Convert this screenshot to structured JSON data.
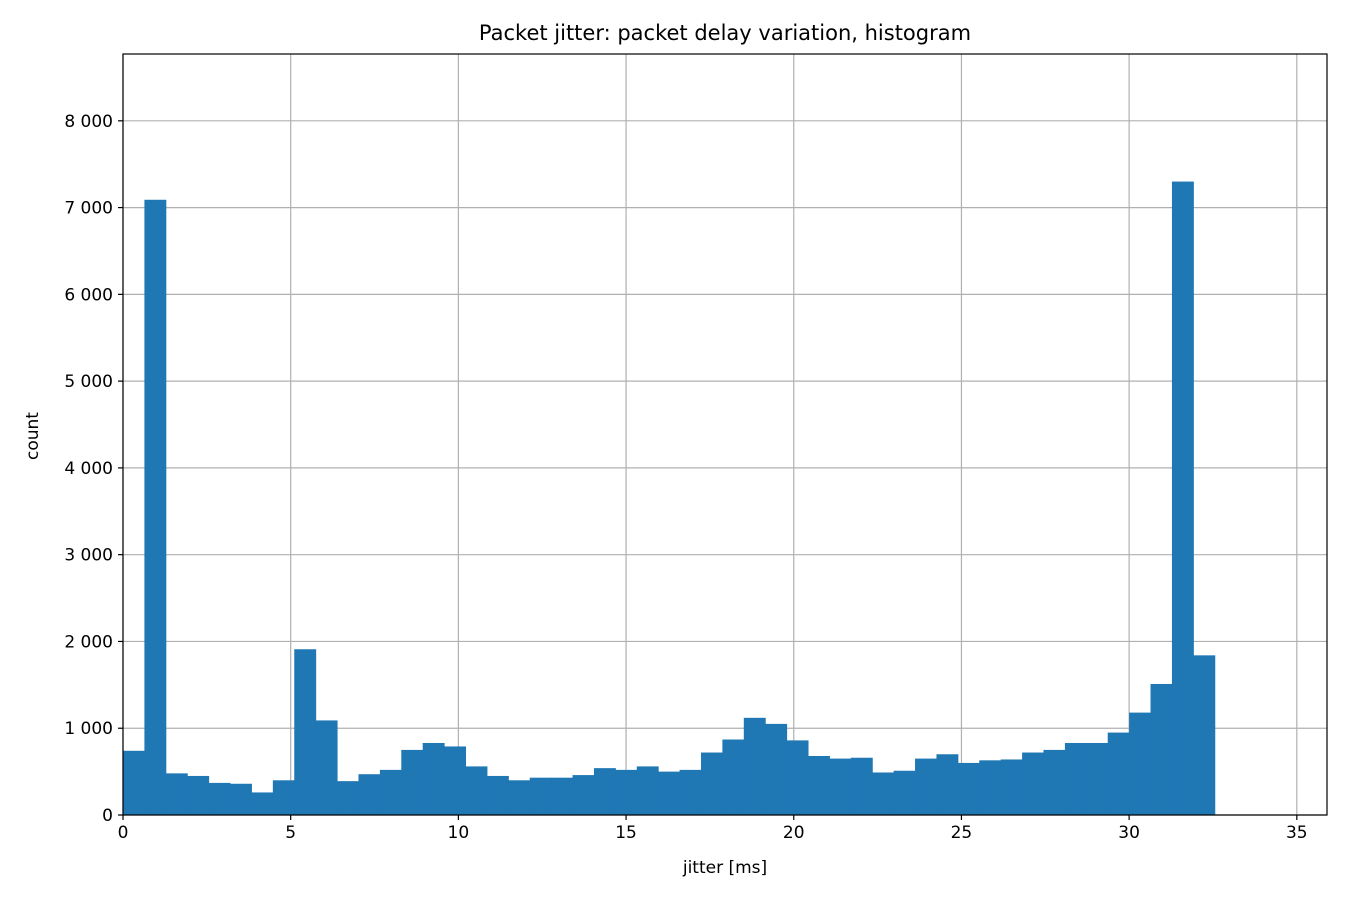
{
  "chart_data": {
    "type": "bar",
    "title": "Packet jitter: packet delay variation, histogram",
    "xlabel": "jitter [ms]",
    "ylabel": "count",
    "xlim": [
      0,
      35.9
    ],
    "ylim": [
      0,
      8770
    ],
    "x_ticks": [
      0,
      5,
      10,
      15,
      20,
      25,
      30,
      35
    ],
    "x_tick_labels": [
      "0",
      "5",
      "10",
      "15",
      "20",
      "25",
      "30",
      "35"
    ],
    "y_ticks": [
      0,
      1000,
      2000,
      3000,
      4000,
      5000,
      6000,
      7000,
      8000
    ],
    "y_tick_labels": [
      "0",
      "1 000",
      "2 000",
      "3 000",
      "4 000",
      "5 000",
      "6 000",
      "7 000",
      "8 000"
    ],
    "grid": true,
    "legend": false,
    "bar_color": "#1f77b4",
    "bin_edges": [
      0,
      0.6383,
      1.2766,
      1.9149,
      2.5532,
      3.1915,
      3.8298,
      4.4681,
      5.1064,
      5.7447,
      6.383,
      7.0213,
      7.6596,
      8.2979,
      8.9362,
      9.5745,
      10.2128,
      10.8511,
      11.4894,
      12.1277,
      12.766,
      13.4043,
      14.0426,
      14.6809,
      15.3191,
      15.9574,
      16.5957,
      17.234,
      17.8723,
      18.5106,
      19.1489,
      19.7872,
      20.4255,
      21.0638,
      21.7021,
      22.3404,
      22.9787,
      23.617,
      24.2553,
      24.8936,
      25.5319,
      26.1702,
      26.8085,
      27.4468,
      28.0851,
      28.7234,
      29.3617,
      30.0,
      30.6383,
      31.2766,
      31.9149,
      32.5532
    ],
    "counts": [
      740,
      7090,
      480,
      450,
      370,
      360,
      260,
      400,
      1910,
      1090,
      390,
      470,
      520,
      750,
      830,
      790,
      560,
      450,
      400,
      430,
      430,
      460,
      540,
      520,
      560,
      500,
      520,
      720,
      870,
      1120,
      1050,
      860,
      680,
      650,
      660,
      490,
      510,
      650,
      700,
      600,
      630,
      640,
      720,
      750,
      830,
      830,
      950,
      1180,
      1510,
      7300,
      1840
    ]
  }
}
